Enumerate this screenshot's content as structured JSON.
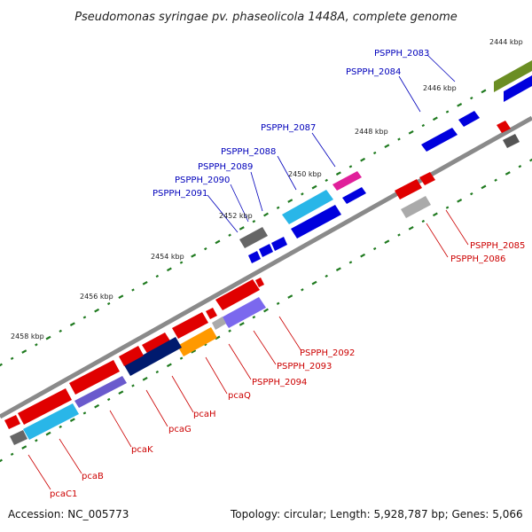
{
  "title": "Pseudomonas syringae pv. phaseolicola 1448A, complete genome",
  "footer": {
    "accession": "Accession: NC_005773",
    "topology": "Topology: circular; Length: 5,928,787 bp; Genes: 5,066"
  },
  "colors": {
    "backbone": "#888888",
    "tick": "#1f7a1f",
    "top_label": "#0000bb",
    "bottom_label": "#cc0000"
  },
  "scale_labels": [
    "2444 kbp",
    "2446 kbp",
    "2448 kbp",
    "2450 kbp",
    "2452 kbp",
    "2454 kbp",
    "2456 kbp",
    "2458 kbp"
  ],
  "top_labels": [
    "PSPPH_2083",
    "PSPPH_2084",
    "PSPPH_2087",
    "PSPPH_2088",
    "PSPPH_2089",
    "PSPPH_2090",
    "PSPPH_2091"
  ],
  "bottom_labels": [
    "PSPPH_2085",
    "PSPPH_2086",
    "PSPPH_2092",
    "PSPPH_2093",
    "PSPPH_2094",
    "pcaQ",
    "pcaH",
    "pcaG",
    "pcaK",
    "pcaB",
    "pcaC1"
  ]
}
